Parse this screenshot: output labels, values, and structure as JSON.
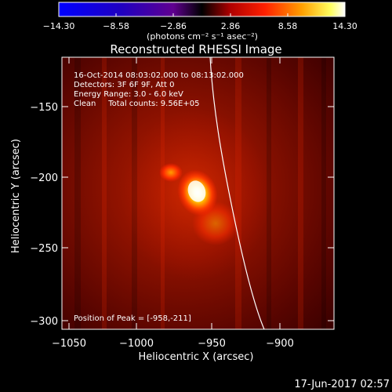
{
  "colorbar": {
    "ticks": [
      "−14.30",
      "−8.58",
      "−2.86",
      "2.86",
      "8.58",
      "14.30"
    ],
    "units": "(photons cm⁻² s⁻¹ asec⁻²)",
    "colors": [
      "#0000ff",
      "#000000",
      "#ff0000",
      "#ffff00",
      "#ffffff"
    ]
  },
  "title": "Reconstructed RHESSI Image",
  "info": {
    "line1": "16-Oct-2014 08:03:02.000 to 08:13:02.000",
    "line2": "Detectors: 3F 6F 9F, Att 0",
    "line3": "Energy Range: 3.0 - 6.0 keV",
    "line4": "Clean     Total counts: 9.56E+05",
    "peak": "Position of Peak = [-958,-211]"
  },
  "axes": {
    "xlabel": "Heliocentric X (arcsec)",
    "ylabel": "Heliocentric Y (arcsec)",
    "xticks": [
      "−1050",
      "−1000",
      "−950",
      "−900"
    ],
    "yticks": [
      "−150",
      "−200",
      "−250",
      "−300"
    ]
  },
  "image": {
    "peak_x": -958,
    "peak_y": -211,
    "x_range": [
      -1058,
      -863
    ],
    "y_range": [
      -118,
      -312
    ],
    "colormap": [
      "#000000",
      "#5a0000",
      "#b00000",
      "#ff3000",
      "#ffb000",
      "#ffff90",
      "#ffffff"
    ]
  },
  "footer": {
    "timestamp": "17-Jun-2017 02:57"
  }
}
